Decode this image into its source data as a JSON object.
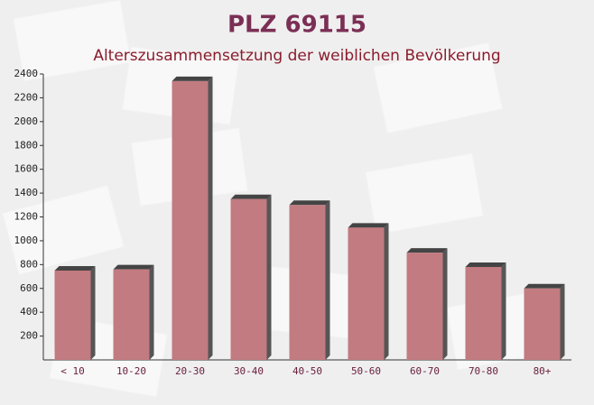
{
  "chart_data": {
    "type": "bar",
    "title": "PLZ 69115",
    "subtitle": "Alterszusammensetzung der weiblichen Bevölkerung",
    "categories": [
      "< 10",
      "10-20",
      "20-30",
      "30-40",
      "40-50",
      "50-60",
      "60-70",
      "70-80",
      "80+"
    ],
    "values": [
      750,
      760,
      2340,
      1350,
      1300,
      1110,
      900,
      780,
      600
    ],
    "color": "#c27b80",
    "ylim": [
      0,
      2400
    ],
    "yticks": [
      200,
      400,
      600,
      800,
      1000,
      1200,
      1400,
      1600,
      1800,
      2000,
      2200,
      2400
    ],
    "grid": false
  }
}
